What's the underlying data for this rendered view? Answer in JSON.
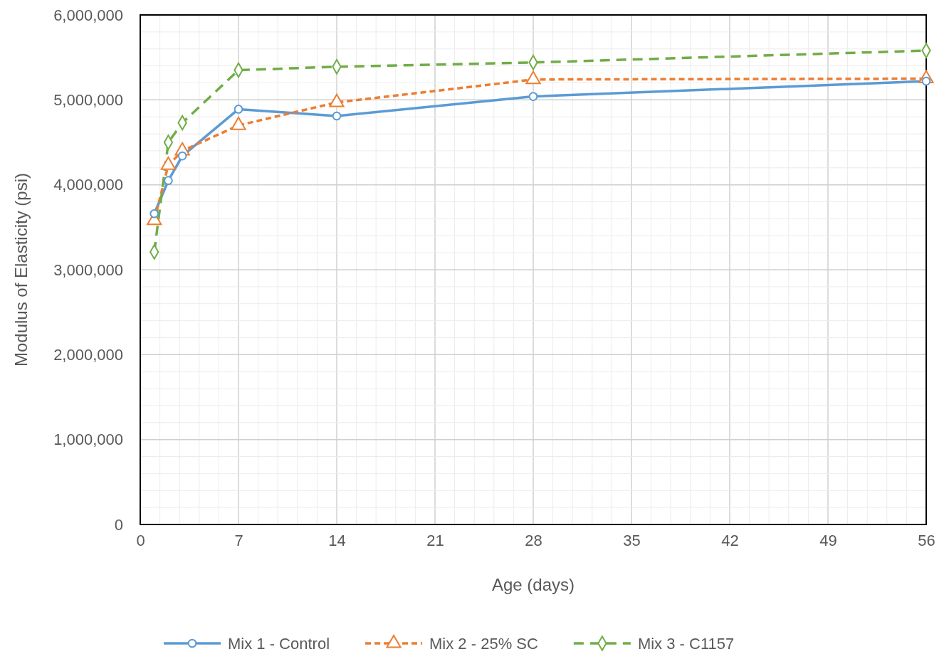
{
  "chart_data": {
    "type": "line",
    "xlabel": "Age (days)",
    "ylabel": "Modulus of Elasticity (psi)",
    "xlim": [
      0,
      56
    ],
    "xticks": [
      0,
      7,
      14,
      21,
      28,
      35,
      42,
      49,
      56
    ],
    "ylim": [
      0,
      6000000
    ],
    "yticks": [
      {
        "value": 0,
        "label": "0"
      },
      {
        "value": 1000000,
        "label": "1,000,000"
      },
      {
        "value": 2000000,
        "label": "2,000,000"
      },
      {
        "value": 3000000,
        "label": "3,000,000"
      },
      {
        "value": 4000000,
        "label": "4,000,000"
      },
      {
        "value": 5000000,
        "label": "5,000,000"
      },
      {
        "value": 6000000,
        "label": "6,000,000"
      }
    ],
    "grid": true,
    "legend": "bottom",
    "series": [
      {
        "name": "Mix 1 - Control",
        "color": "#5b9bd5",
        "marker": "circle",
        "line_style": "solid",
        "x": [
          1,
          2,
          3,
          7,
          14,
          28,
          56
        ],
        "values": [
          3660000,
          4050000,
          4340000,
          4890000,
          4810000,
          5040000,
          5220000
        ]
      },
      {
        "name": "Mix 2 - 25% SC",
        "color": "#ed7d31",
        "marker": "triangle",
        "line_style": "dotted",
        "x": [
          1,
          2,
          3,
          7,
          14,
          28,
          56
        ],
        "values": [
          3580000,
          4230000,
          4400000,
          4700000,
          4970000,
          5240000,
          5250000
        ]
      },
      {
        "name": "Mix 3 - C1157",
        "color": "#70ad47",
        "marker": "diamond",
        "line_style": "dashed",
        "x": [
          1,
          2,
          3,
          7,
          14,
          28,
          56
        ],
        "values": [
          3210000,
          4500000,
          4730000,
          5350000,
          5390000,
          5440000,
          5580000
        ]
      }
    ]
  }
}
